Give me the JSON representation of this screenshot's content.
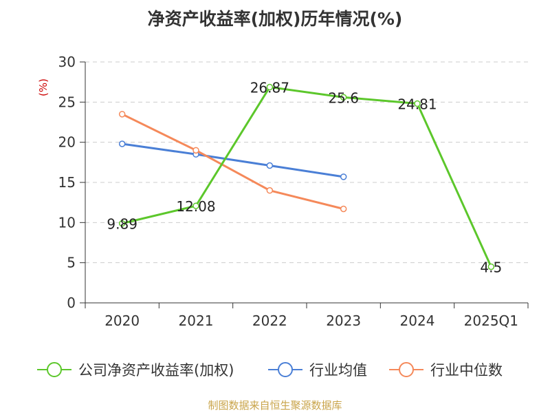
{
  "chart_data": {
    "type": "line",
    "title": "净资产收益率(加权)历年情况(%)",
    "ylabel": "(%)",
    "xlabel": "",
    "ylim": [
      0,
      30
    ],
    "yticks": [
      "0",
      "5",
      "10",
      "15",
      "20",
      "25",
      "30"
    ],
    "categories": [
      "2020",
      "2021",
      "2022",
      "2023",
      "2024",
      "2025Q1"
    ],
    "grid": true,
    "legend_position": "bottom",
    "series": [
      {
        "name": "公司净资产收益率(加权)",
        "color": "#5cc72b",
        "values": [
          9.89,
          12.08,
          26.87,
          25.6,
          24.81,
          4.5
        ],
        "labels": [
          "9.89",
          "12.08",
          "26.87",
          "25.6",
          "24.81",
          "4.5"
        ]
      },
      {
        "name": "行业均值",
        "color": "#4a7fd6",
        "values": [
          19.8,
          18.5,
          17.1,
          15.7,
          null,
          null
        ]
      },
      {
        "name": "行业中位数",
        "color": "#f5895a",
        "values": [
          23.5,
          19.0,
          14.0,
          11.7,
          null,
          null
        ]
      }
    ]
  },
  "footer": {
    "source": "制图数据来自恒生聚源数据库"
  }
}
